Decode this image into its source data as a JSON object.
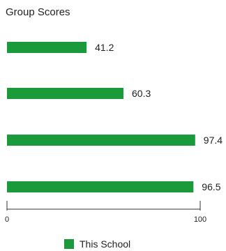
{
  "chart_data": {
    "type": "bar",
    "orientation": "horizontal",
    "title": "Group Scores",
    "categories": [
      "",
      "",
      "",
      ""
    ],
    "series": [
      {
        "name": "This School",
        "values": [
          41.2,
          60.3,
          97.4,
          96.5
        ],
        "color": "#1a9a3a"
      }
    ],
    "xlim": [
      0,
      100
    ],
    "x_ticks": [
      0,
      100
    ],
    "x_tick_labels": [
      "0",
      "100"
    ],
    "value_labels": [
      "41.2",
      "60.3",
      "97.4",
      "96.5"
    ],
    "legend_position": "bottom",
    "grid": false
  }
}
